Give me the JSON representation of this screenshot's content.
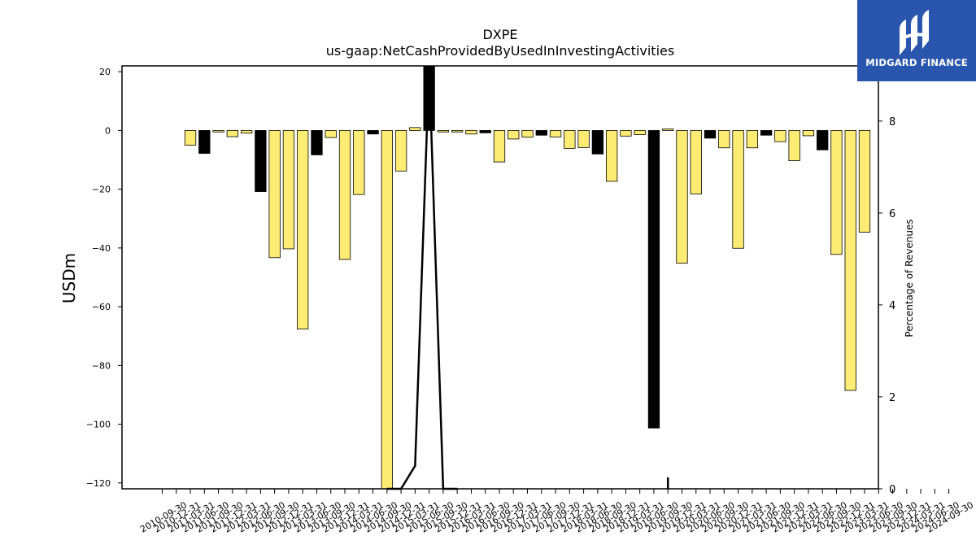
{
  "chart_data": {
    "type": "bar",
    "title": "DXPE",
    "subtitle": "us-gaap:NetCashProvidedByUsedInInvestingActivities",
    "ylabel": "USDm",
    "y2label": "Percentage of Revenues",
    "ylim": [
      -122,
      22
    ],
    "y2lim": [
      0,
      9.2
    ],
    "yticks": [
      20,
      0,
      -20,
      -40,
      -60,
      -80,
      -100,
      -120
    ],
    "y2ticks": [
      8,
      6,
      4,
      2,
      0
    ],
    "colors": {
      "positive_quarter": "#fdec73",
      "q4": "#000000",
      "line": "#000000"
    },
    "categories": [
      "2010-09-30",
      "2010-12-31",
      "2011-03-31",
      "2011-06-30",
      "2011-09-30",
      "2011-12-31",
      "2012-03-31",
      "2012-06-30",
      "2012-09-30",
      "2012-12-31",
      "2013-03-31",
      "2013-06-30",
      "2013-09-30",
      "2013-12-31",
      "2014-03-31",
      "2014-06-30",
      "2014-09-30",
      "2014-12-31",
      "2015-03-31",
      "2015-06-30",
      "2015-09-30",
      "2015-12-31",
      "2016-03-31",
      "2016-06-30",
      "2016-09-30",
      "2016-12-31",
      "2017-03-31",
      "2017-06-30",
      "2017-09-30",
      "2017-12-31",
      "2018-03-31",
      "2018-06-30",
      "2018-09-30",
      "2018-12-31",
      "2019-03-31",
      "2019-06-30",
      "2019-09-30",
      "2019-12-31",
      "2020-03-31",
      "2020-06-30",
      "2020-09-30",
      "2020-12-31",
      "2021-03-31",
      "2021-06-30",
      "2021-09-30",
      "2021-12-31",
      "2022-03-31",
      "2022-06-30",
      "2022-09-30",
      "2022-12-31",
      "2023-03-31",
      "2023-06-30",
      "2023-09-30",
      "2023-12-31",
      "2024-03-31",
      "2024-06-30",
      "2024-09-30"
    ],
    "xtick_labels": [
      "2010-09-30",
      "2010-12-31",
      "2011-03-31",
      "2011-06-30",
      "2011-09-30",
      "2011-12-31",
      "2012-03-31",
      "2012-06-30",
      "2012-09-30",
      "2012-12-31",
      "2013-03-31",
      "2013-06-30",
      "2013-09-30",
      "2013-12-31",
      "2014-03-31",
      "2014-06-30",
      "2014-09-30",
      "2014-12-31",
      "2015-03-31",
      "2015-06-30",
      "2015-09-30",
      "2015-12-31",
      "2016-03-31",
      "2016-06-30",
      "2016-09-30",
      "2016-12-31",
      "2017-03-31",
      "2017-06-30",
      "2017-09-30",
      "2017-12-31",
      "2018-03-31",
      "2018-06-30",
      "2018-09-30",
      "2018-12-31",
      "2019-03-31",
      "2019-06-30",
      "2019-09-30",
      "2019-12-31",
      "2020-03-31",
      "2020-06-30",
      "2020-09-30",
      "2020-12-31",
      "2021-03-31",
      "2021-06-30",
      "2021-09-30",
      "2021-12-31",
      "2022-03-31",
      "2022-06-30",
      "2022-09-30",
      "2022-12-31",
      "2023-03-31",
      "2023-06-30",
      "2023-09-30",
      "2023-12-31",
      "2024-03-31",
      "2024-06-30",
      "2024-09-30"
    ],
    "bars": [
      {
        "x": "2011-03-31",
        "value": -5.0,
        "q4": false
      },
      {
        "x": "2011-06-30",
        "value": -7.8,
        "q4": true
      },
      {
        "x": "2011-09-30",
        "value": -0.5,
        "q4": false
      },
      {
        "x": "2011-12-31",
        "value": -2.1,
        "q4": false
      },
      {
        "x": "2012-03-31",
        "value": -0.9,
        "q4": false
      },
      {
        "x": "2012-06-30",
        "value": -20.8,
        "q4": true
      },
      {
        "x": "2012-09-30",
        "value": -43.3,
        "q4": false
      },
      {
        "x": "2012-12-31",
        "value": -40.3,
        "q4": false
      },
      {
        "x": "2013-03-31",
        "value": -67.6,
        "q4": false
      },
      {
        "x": "2013-06-30",
        "value": -8.3,
        "q4": true
      },
      {
        "x": "2013-09-30",
        "value": -2.4,
        "q4": false
      },
      {
        "x": "2013-12-31",
        "value": -43.9,
        "q4": false
      },
      {
        "x": "2014-03-31",
        "value": -21.8,
        "q4": false
      },
      {
        "x": "2014-06-30",
        "value": -1.2,
        "q4": true
      },
      {
        "x": "2014-09-30",
        "value": -122.0,
        "q4": false
      },
      {
        "x": "2014-12-31",
        "value": -13.8,
        "q4": false
      },
      {
        "x": "2015-03-31",
        "value": 1.0,
        "q4": false
      },
      {
        "x": "2015-06-30",
        "value": 22.0,
        "q4": true
      },
      {
        "x": "2015-09-30",
        "value": -0.5,
        "q4": false
      },
      {
        "x": "2015-12-31",
        "value": -0.5,
        "q4": false
      },
      {
        "x": "2016-03-31",
        "value": -1.2,
        "q4": false
      },
      {
        "x": "2016-06-30",
        "value": -0.8,
        "q4": true
      },
      {
        "x": "2016-09-30",
        "value": -10.7,
        "q4": false
      },
      {
        "x": "2016-12-31",
        "value": -2.9,
        "q4": false
      },
      {
        "x": "2017-03-31",
        "value": -2.3,
        "q4": false
      },
      {
        "x": "2017-06-30",
        "value": -1.6,
        "q4": true
      },
      {
        "x": "2017-09-30",
        "value": -2.2,
        "q4": false
      },
      {
        "x": "2017-12-31",
        "value": -6.1,
        "q4": false
      },
      {
        "x": "2018-03-31",
        "value": -5.8,
        "q4": false
      },
      {
        "x": "2018-06-30",
        "value": -8.0,
        "q4": true
      },
      {
        "x": "2018-09-30",
        "value": -17.3,
        "q4": false
      },
      {
        "x": "2018-12-31",
        "value": -1.9,
        "q4": false
      },
      {
        "x": "2019-03-31",
        "value": -1.4,
        "q4": false
      },
      {
        "x": "2019-06-30",
        "value": -101.3,
        "q4": true
      },
      {
        "x": "2019-09-30",
        "value": 0.5,
        "q4": false
      },
      {
        "x": "2019-12-31",
        "value": -45.2,
        "q4": false
      },
      {
        "x": "2020-03-31",
        "value": -21.6,
        "q4": false
      },
      {
        "x": "2020-06-30",
        "value": -2.6,
        "q4": true
      },
      {
        "x": "2020-09-30",
        "value": -5.9,
        "q4": false
      },
      {
        "x": "2020-12-31",
        "value": -40.1,
        "q4": false
      },
      {
        "x": "2021-03-31",
        "value": -5.9,
        "q4": false
      },
      {
        "x": "2021-06-30",
        "value": -1.6,
        "q4": true
      },
      {
        "x": "2021-09-30",
        "value": -3.8,
        "q4": false
      },
      {
        "x": "2021-12-31",
        "value": -10.3,
        "q4": false
      },
      {
        "x": "2022-03-31",
        "value": -1.8,
        "q4": false
      },
      {
        "x": "2022-06-30",
        "value": -6.6,
        "q4": true
      },
      {
        "x": "2022-09-30",
        "value": -42.2,
        "q4": false
      },
      {
        "x": "2022-12-31",
        "value": -88.5,
        "q4": false
      },
      {
        "x": "2023-03-31",
        "value": -34.6,
        "q4": false
      }
    ],
    "line": [
      {
        "x": "2014-09-30",
        "value": 0.0
      },
      {
        "x": "2014-12-31",
        "value": 0.0
      },
      {
        "x": "2015-03-31",
        "value": 0.5
      },
      {
        "x": "2015-06-30",
        "value": 9.2
      },
      {
        "x": "2015-09-30",
        "value": 0.0
      },
      {
        "x": "2015-12-31",
        "value": 0.0
      }
    ],
    "spike": {
      "x": "2019-09-30",
      "value": 0.25
    }
  },
  "logo": {
    "text": "MIDGARD FINANCE"
  }
}
